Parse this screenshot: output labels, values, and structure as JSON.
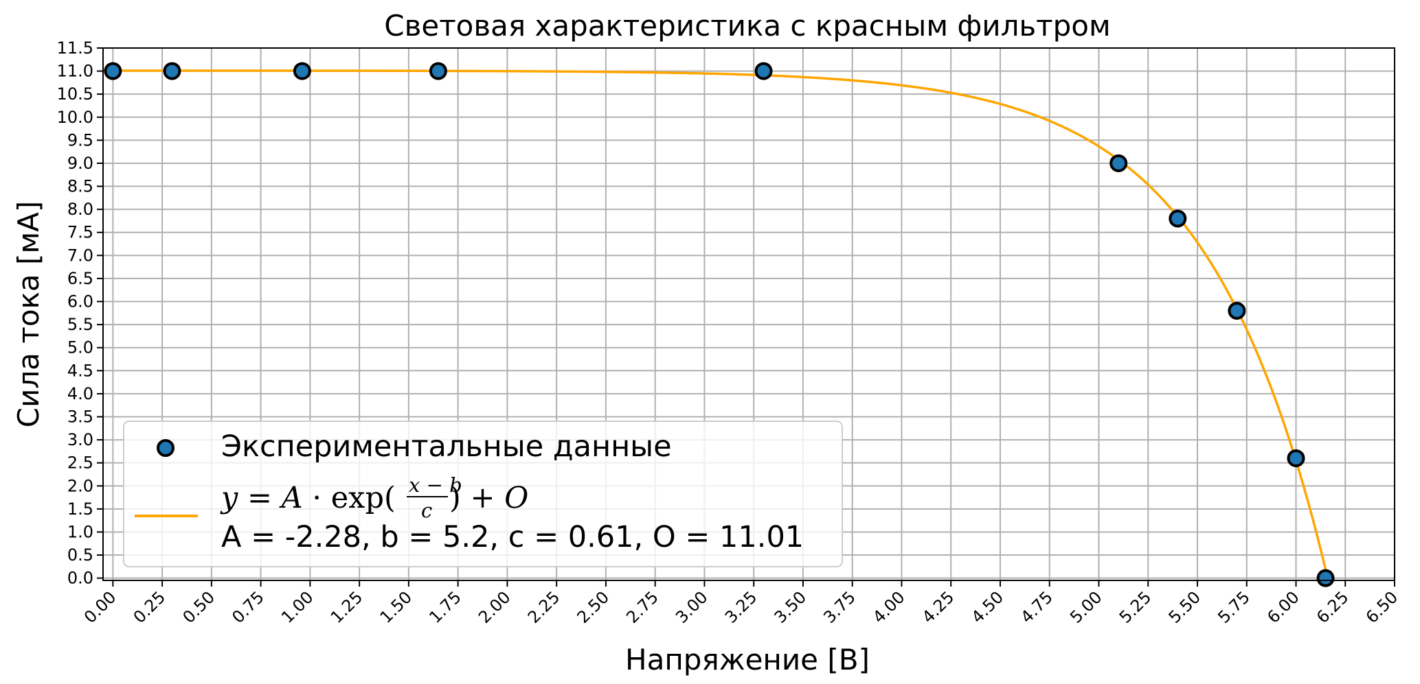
{
  "chart_data": {
    "type": "scatter",
    "title": "Световая характеристика с красным фильтром",
    "xlabel": "Напряжение [В]",
    "ylabel": "Сила тока [мА]",
    "xlim": [
      -0.05,
      6.5
    ],
    "ylim": [
      -0.05,
      11.5
    ],
    "x_ticks": [
      "0.00",
      "0.25",
      "0.50",
      "0.75",
      "1.00",
      "1.25",
      "1.50",
      "1.75",
      "2.00",
      "2.25",
      "2.50",
      "2.75",
      "3.00",
      "3.25",
      "3.50",
      "3.75",
      "4.00",
      "4.25",
      "4.50",
      "4.75",
      "5.00",
      "5.25",
      "5.50",
      "5.75",
      "6.00",
      "6.25",
      "6.50"
    ],
    "y_ticks": [
      "0.0",
      "0.5",
      "1.0",
      "1.5",
      "2.0",
      "2.5",
      "3.0",
      "3.5",
      "4.0",
      "4.5",
      "5.0",
      "5.5",
      "6.0",
      "6.5",
      "7.0",
      "7.5",
      "8.0",
      "8.5",
      "9.0",
      "9.5",
      "10.0",
      "10.5",
      "11.0",
      "11.5"
    ],
    "grid": true,
    "legend_position": "lower-left",
    "series": [
      {
        "name": "Экспериментальные данные",
        "kind": "scatter",
        "color": "#1f77b4",
        "edgecolor": "#000000",
        "x": [
          0.0,
          0.3,
          0.96,
          1.65,
          3.3,
          5.1,
          5.4,
          5.7,
          6.0,
          6.15
        ],
        "y": [
          11.0,
          11.0,
          11.0,
          11.0,
          11.0,
          9.0,
          7.8,
          5.8,
          2.6,
          0.0
        ]
      },
      {
        "name": "y = A · exp((x − b)/c) + O",
        "name_line2": "A = -2.28, b = 5.2, c = 0.61, O = 11.01",
        "kind": "fit-line",
        "color": "#ffa500",
        "params": {
          "A": -2.28,
          "b": 5.2,
          "c": 0.61,
          "O": 11.01
        },
        "x_range": [
          -0.05,
          6.15
        ]
      }
    ]
  }
}
